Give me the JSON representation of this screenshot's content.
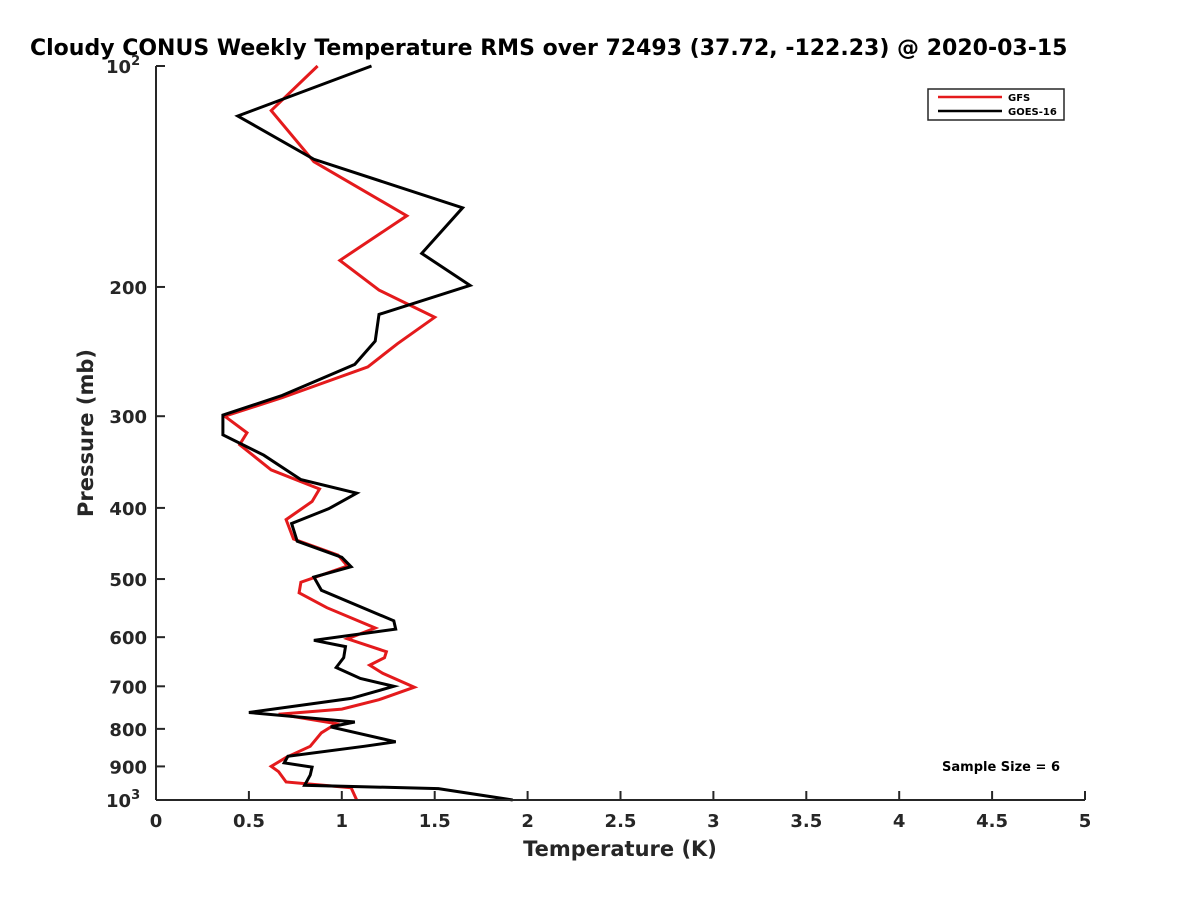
{
  "chart_data": {
    "type": "line",
    "title": "Cloudy CONUS Weekly Temperature RMS over 72493 (37.72, -122.23) @ 2020-03-15",
    "xlabel": "Temperature (K)",
    "ylabel": "Pressure (mb)",
    "xlim": [
      0,
      5
    ],
    "ylim": [
      100,
      1000
    ],
    "y_scale": "log",
    "y_reversed": true,
    "grid": false,
    "legend_position": "top-right",
    "x_ticks": [
      "0",
      "0.5",
      "1",
      "1.5",
      "2",
      "2.5",
      "3",
      "3.5",
      "4",
      "4.5",
      "5"
    ],
    "x_tick_values": [
      0,
      0.5,
      1,
      1.5,
      2,
      2.5,
      3,
      3.5,
      4,
      4.5,
      5
    ],
    "y_ticks": [
      {
        "value": 100,
        "label": "10",
        "sup": "2"
      },
      {
        "value": 200,
        "label": "200",
        "sup": ""
      },
      {
        "value": 300,
        "label": "300",
        "sup": ""
      },
      {
        "value": 400,
        "label": "400",
        "sup": ""
      },
      {
        "value": 500,
        "label": "500",
        "sup": ""
      },
      {
        "value": 600,
        "label": "600",
        "sup": ""
      },
      {
        "value": 700,
        "label": "700",
        "sup": ""
      },
      {
        "value": 800,
        "label": "800",
        "sup": ""
      },
      {
        "value": 900,
        "label": "900",
        "sup": ""
      },
      {
        "value": 1000,
        "label": "10",
        "sup": "3"
      }
    ],
    "annotation": "Sample Size = 6",
    "series": [
      {
        "name": "GFS",
        "color": "#e41a1c",
        "points": [
          [
            0.87,
            100
          ],
          [
            0.62,
            115
          ],
          [
            0.85,
            135
          ],
          [
            1.35,
            160
          ],
          [
            0.99,
            184
          ],
          [
            1.2,
            202
          ],
          [
            1.5,
            220
          ],
          [
            1.3,
            239
          ],
          [
            1.14,
            257
          ],
          [
            0.68,
            283
          ],
          [
            0.37,
            300
          ],
          [
            0.49,
            316
          ],
          [
            0.45,
            328
          ],
          [
            0.62,
            355
          ],
          [
            0.88,
            377
          ],
          [
            0.84,
            392
          ],
          [
            0.7,
            415
          ],
          [
            0.74,
            441
          ],
          [
            0.98,
            464
          ],
          [
            1.03,
            480
          ],
          [
            0.78,
            505
          ],
          [
            0.77,
            522
          ],
          [
            0.92,
            547
          ],
          [
            1.18,
            583
          ],
          [
            1.03,
            603
          ],
          [
            1.24,
            628
          ],
          [
            1.23,
            640
          ],
          [
            1.15,
            655
          ],
          [
            1.22,
            672
          ],
          [
            1.39,
            702
          ],
          [
            1.2,
            730
          ],
          [
            1.0,
            752
          ],
          [
            0.66,
            764
          ],
          [
            0.97,
            787
          ],
          [
            0.89,
            810
          ],
          [
            0.83,
            845
          ],
          [
            0.7,
            875
          ],
          [
            0.62,
            900
          ],
          [
            0.66,
            915
          ],
          [
            0.7,
            945
          ],
          [
            1.05,
            962
          ],
          [
            1.08,
            1000
          ]
        ]
      },
      {
        "name": "GOES-16",
        "color": "#000000",
        "points": [
          [
            1.16,
            100
          ],
          [
            0.44,
            117
          ],
          [
            0.85,
            134
          ],
          [
            1.65,
            156
          ],
          [
            1.43,
            180
          ],
          [
            1.69,
            199
          ],
          [
            1.2,
            218
          ],
          [
            1.18,
            237
          ],
          [
            1.07,
            255
          ],
          [
            0.68,
            281
          ],
          [
            0.36,
            299
          ],
          [
            0.36,
            318
          ],
          [
            0.58,
            339
          ],
          [
            0.78,
            366
          ],
          [
            1.08,
            382
          ],
          [
            0.93,
            401
          ],
          [
            0.73,
            420
          ],
          [
            0.76,
            444
          ],
          [
            1.0,
            467
          ],
          [
            1.05,
            481
          ],
          [
            0.85,
            497
          ],
          [
            0.89,
            518
          ],
          [
            1.28,
            570
          ],
          [
            1.29,
            585
          ],
          [
            0.85,
            606
          ],
          [
            1.02,
            618
          ],
          [
            1.01,
            640
          ],
          [
            0.97,
            660
          ],
          [
            1.1,
            683
          ],
          [
            1.28,
            700
          ],
          [
            1.05,
            727
          ],
          [
            0.5,
            760
          ],
          [
            1.07,
            783
          ],
          [
            0.94,
            795
          ],
          [
            1.29,
            833
          ],
          [
            1.12,
            845
          ],
          [
            0.71,
            872
          ],
          [
            0.69,
            890
          ],
          [
            0.84,
            902
          ],
          [
            0.83,
            925
          ],
          [
            0.8,
            955
          ],
          [
            1.52,
            965
          ],
          [
            1.92,
            1000
          ]
        ]
      }
    ]
  }
}
